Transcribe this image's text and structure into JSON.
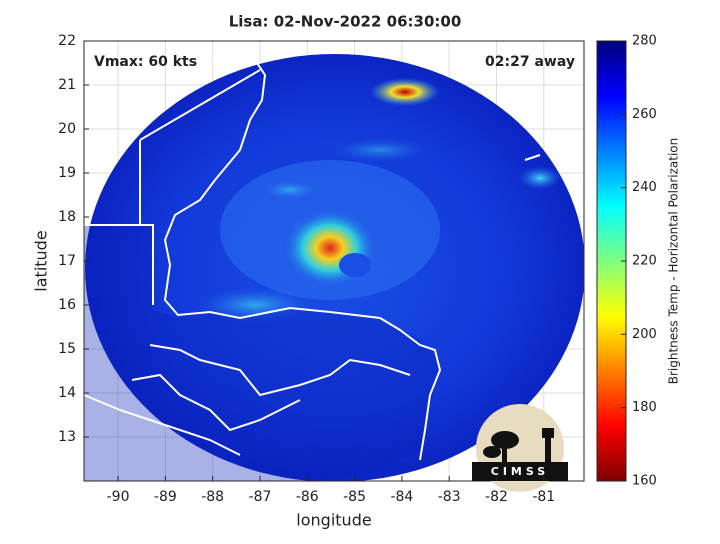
{
  "chart_data": {
    "type": "map",
    "title": "Lisa: 02-Nov-2022 06:30:00",
    "annotations": [
      "Vmax: 60 kts",
      "02:27 away"
    ],
    "logo_text": "CIMSS",
    "xlabel": "longitude",
    "ylabel": "latitude",
    "xlim": [
      -90.72,
      -80.15
    ],
    "ylim": [
      12,
      22
    ],
    "xticks": [
      -90,
      -89,
      -88,
      -87,
      -86,
      -85,
      -84,
      -83,
      -82,
      -81
    ],
    "yticks": [
      13,
      14,
      15,
      16,
      17,
      18,
      19,
      20,
      21,
      22
    ],
    "grid": true,
    "colorbar": {
      "label": "Brightness Temp - Horizontal Polarization",
      "lim": [
        160,
        280
      ],
      "ticks": [
        160,
        180,
        200,
        220,
        240,
        260,
        280
      ]
    }
  }
}
